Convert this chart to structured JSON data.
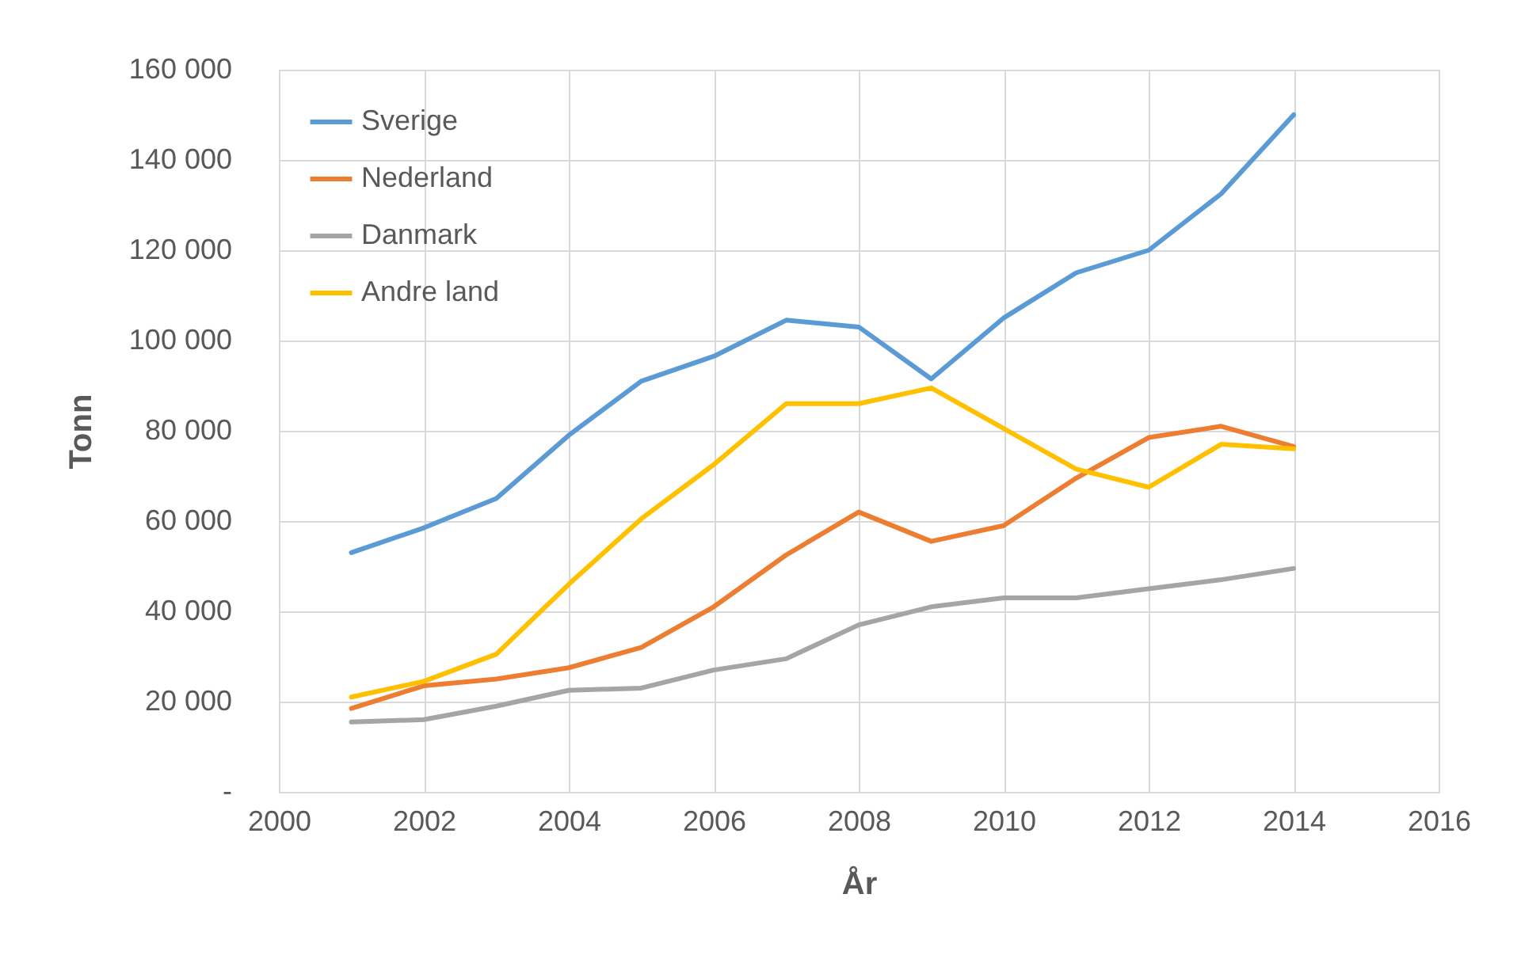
{
  "chart_data": {
    "type": "line",
    "xlabel": "År",
    "ylabel": "Tonn",
    "x": [
      2001,
      2002,
      2003,
      2004,
      2005,
      2006,
      2007,
      2008,
      2009,
      2010,
      2011,
      2012,
      2013,
      2014
    ],
    "series": [
      {
        "name": "Sverige",
        "color": "#5b9bd5",
        "values": [
          53000,
          58500,
          65000,
          79000,
          91000,
          96500,
          104500,
          103000,
          91500,
          105000,
          115000,
          120000,
          132500,
          150000
        ]
      },
      {
        "name": "Nederland",
        "color": "#ed7d31",
        "values": [
          18500,
          23500,
          25000,
          27500,
          32000,
          41000,
          52500,
          62000,
          55500,
          59000,
          69500,
          78500,
          81000,
          76500
        ]
      },
      {
        "name": "Danmark",
        "color": "#a5a5a5",
        "values": [
          15500,
          16000,
          19000,
          22500,
          23000,
          27000,
          29500,
          37000,
          41000,
          43000,
          43000,
          45000,
          47000,
          49500
        ]
      },
      {
        "name": "Andre land",
        "color": "#ffc000",
        "values": [
          21000,
          24500,
          30500,
          46000,
          60500,
          72500,
          86000,
          86000,
          89500,
          80500,
          71500,
          67500,
          77000,
          76000
        ]
      }
    ],
    "xlim": [
      2000,
      2016
    ],
    "xticks": [
      2000,
      2002,
      2004,
      2006,
      2008,
      2010,
      2012,
      2014,
      2016
    ],
    "ylim": [
      0,
      160000
    ],
    "yticks": [
      {
        "value": 0,
        "label": "-"
      },
      {
        "value": 20000,
        "label": "20 000"
      },
      {
        "value": 40000,
        "label": "40 000"
      },
      {
        "value": 60000,
        "label": "60 000"
      },
      {
        "value": 80000,
        "label": "80 000"
      },
      {
        "value": 100000,
        "label": "100 000"
      },
      {
        "value": 120000,
        "label": "120 000"
      },
      {
        "value": 140000,
        "label": "140 000"
      },
      {
        "value": 160000,
        "label": "160 000"
      }
    ],
    "grid": true,
    "legend": "top left"
  }
}
